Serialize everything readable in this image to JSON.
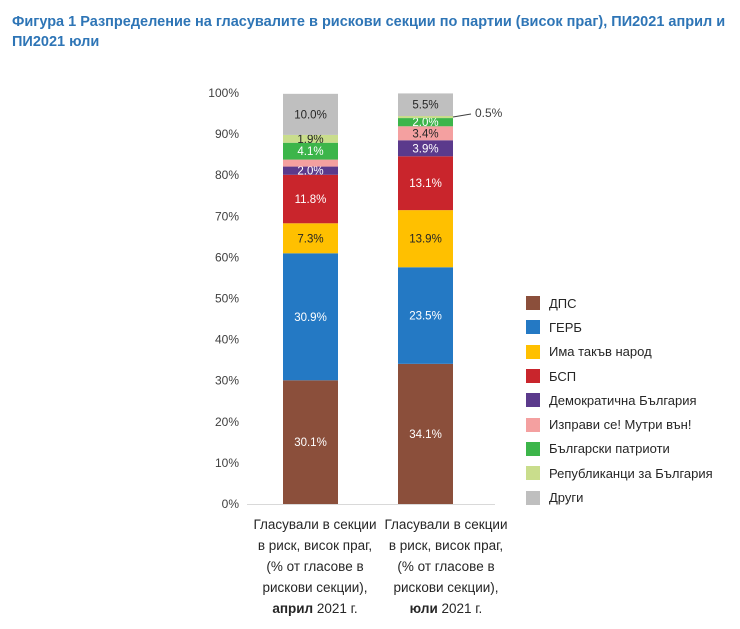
{
  "title": "Фигура 1 Разпределение на гласувалите в рискови секции по партии (висок праг), ПИ2021 април и ПИ2021 юли",
  "chart_data": {
    "type": "bar",
    "stacked": true,
    "ylim": [
      0,
      100
    ],
    "yticks": [
      "0%",
      "10%",
      "20%",
      "30%",
      "40%",
      "50%",
      "60%",
      "70%",
      "80%",
      "90%",
      "100%"
    ],
    "categories": [
      {
        "lines": [
          "Гласували в секции",
          "в риск, висок праг,",
          "(% от гласове в",
          "рискови секции),"
        ],
        "bold": "април",
        "suffix": " 2021 г."
      },
      {
        "lines": [
          "Гласували в секции",
          "в риск, висок праг,",
          "(% от гласове в",
          "рискови секции),"
        ],
        "bold": "юли",
        "suffix": " 2021 г."
      }
    ],
    "series": [
      {
        "name": "ДПС",
        "color": "#8b4f3b",
        "text_color": "#ffffff",
        "values": [
          30.1,
          34.1
        ],
        "labels": [
          "30.1%",
          "34.1%"
        ]
      },
      {
        "name": "ГЕРБ",
        "color": "#2479c4",
        "text_color": "#ffffff",
        "values": [
          30.9,
          23.5
        ],
        "labels": [
          "30.9%",
          "23.5%"
        ]
      },
      {
        "name": "Има такъв народ",
        "color": "#ffc000",
        "text_color": "#262626",
        "values": [
          7.3,
          13.9
        ],
        "labels": [
          "7.3%",
          "13.9%"
        ]
      },
      {
        "name": "БСП",
        "color": "#c9252c",
        "text_color": "#ffffff",
        "values": [
          11.8,
          13.1
        ],
        "labels": [
          "11.8%",
          "13.1%"
        ]
      },
      {
        "name": "Демократична България",
        "color": "#5b3a8c",
        "text_color": "#ffffff",
        "values": [
          2.0,
          3.9
        ],
        "labels": [
          "2.0%",
          "3.9%"
        ]
      },
      {
        "name": "Изправи се! Мутри вън!",
        "color": "#f4a0a0",
        "text_color": "#262626",
        "values": [
          1.7,
          3.4
        ],
        "labels": [
          "",
          "3.4%"
        ]
      },
      {
        "name": "Български патриоти",
        "color": "#3cb54a",
        "text_color": "#ffffff",
        "values": [
          4.1,
          2.0
        ],
        "labels": [
          "4.1%",
          "2.0%"
        ]
      },
      {
        "name": "Републиканци за България",
        "color": "#c9dd8c",
        "text_color": "#262626",
        "values": [
          1.9,
          0.5
        ],
        "labels": [
          "1.9%",
          ""
        ]
      },
      {
        "name": "Други",
        "color": "#bfbfbf",
        "text_color": "#262626",
        "values": [
          10.0,
          5.5
        ],
        "labels": [
          "10.0%",
          "5.5%"
        ]
      }
    ],
    "annotations": [
      {
        "category_index": 1,
        "series_index": 7,
        "label": "0.5%"
      }
    ]
  }
}
